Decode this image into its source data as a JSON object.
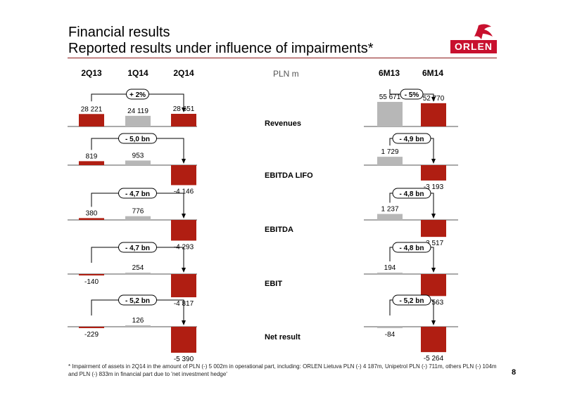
{
  "header": {
    "title_line1": "Financial results",
    "title_line2": "Reported results under influence of impairments*",
    "logo_text": "ORLEN"
  },
  "quarterly_columns": [
    "2Q13",
    "1Q14",
    "2Q14"
  ],
  "half_year_columns": [
    "6M13",
    "6M14"
  ],
  "unit": "PLN m",
  "colors": {
    "dark_red": "#b01e12",
    "grey": "#b7b7b7",
    "accent_line": "#8b1a1a"
  },
  "chart_data": [
    {
      "type": "bar",
      "row": "Revenues",
      "quarterly": {
        "categories": [
          "2Q13",
          "1Q14",
          "2Q14"
        ],
        "values": [
          28221,
          24119,
          28651
        ],
        "labels": [
          "28 221",
          "24 119",
          "28 651"
        ],
        "change": "+ 2%"
      },
      "half_year": {
        "categories": [
          "6M13",
          "6M14"
        ],
        "values": [
          55671,
          52770
        ],
        "labels": [
          "55 671",
          "52 770"
        ],
        "change": "- 5%"
      }
    },
    {
      "type": "bar",
      "row": "EBITDA LIFO",
      "quarterly": {
        "categories": [
          "2Q13",
          "1Q14",
          "2Q14"
        ],
        "values": [
          819,
          953,
          -4146
        ],
        "labels": [
          "819",
          "953",
          "-4 146"
        ],
        "change": "- 5,0 bn"
      },
      "half_year": {
        "categories": [
          "6M13",
          "6M14"
        ],
        "values": [
          1729,
          -3193
        ],
        "labels": [
          "1 729",
          "-3 193"
        ],
        "change": "- 4,9 bn"
      }
    },
    {
      "type": "bar",
      "row": "EBITDA",
      "quarterly": {
        "categories": [
          "2Q13",
          "1Q14",
          "2Q14"
        ],
        "values": [
          380,
          776,
          -4293
        ],
        "labels": [
          "380",
          "776",
          "-4 293"
        ],
        "change": "- 4,7 bn"
      },
      "half_year": {
        "categories": [
          "6M13",
          "6M14"
        ],
        "values": [
          1237,
          -3517
        ],
        "labels": [
          "1 237",
          "-3 517"
        ],
        "change": "- 4,8 bn"
      }
    },
    {
      "type": "bar",
      "row": "EBIT",
      "quarterly": {
        "categories": [
          "2Q13",
          "1Q14",
          "2Q14"
        ],
        "values": [
          -140,
          254,
          -4817
        ],
        "labels": [
          "-140",
          "254",
          "-4 817"
        ],
        "change": "- 4,7 bn"
      },
      "half_year": {
        "categories": [
          "6M13",
          "6M14"
        ],
        "values": [
          194,
          -4563
        ],
        "labels": [
          "194",
          "-4 563"
        ],
        "change": "- 4,8 bn"
      }
    },
    {
      "type": "bar",
      "row": "Net result",
      "quarterly": {
        "categories": [
          "2Q13",
          "1Q14",
          "2Q14"
        ],
        "values": [
          -229,
          126,
          -5390
        ],
        "labels": [
          "-229",
          "126",
          "-5 390"
        ],
        "change": "- 5,2 bn"
      },
      "half_year": {
        "categories": [
          "6M13",
          "6M14"
        ],
        "values": [
          -84,
          -5264
        ],
        "labels": [
          "-84",
          "-5 264"
        ],
        "change": "- 5,2 bn"
      }
    }
  ],
  "footnote": "* Impairment of assets in 2Q14 in the amount of PLN (-) 5 002m in operational part, including: ORLEN Lietuva  PLN (-) 4 187m, Unipetrol PLN (-) 711m, others PLN (-) 104m and PLN (-) 833m in financial part due to 'net investment hedge'",
  "page_number": "8"
}
